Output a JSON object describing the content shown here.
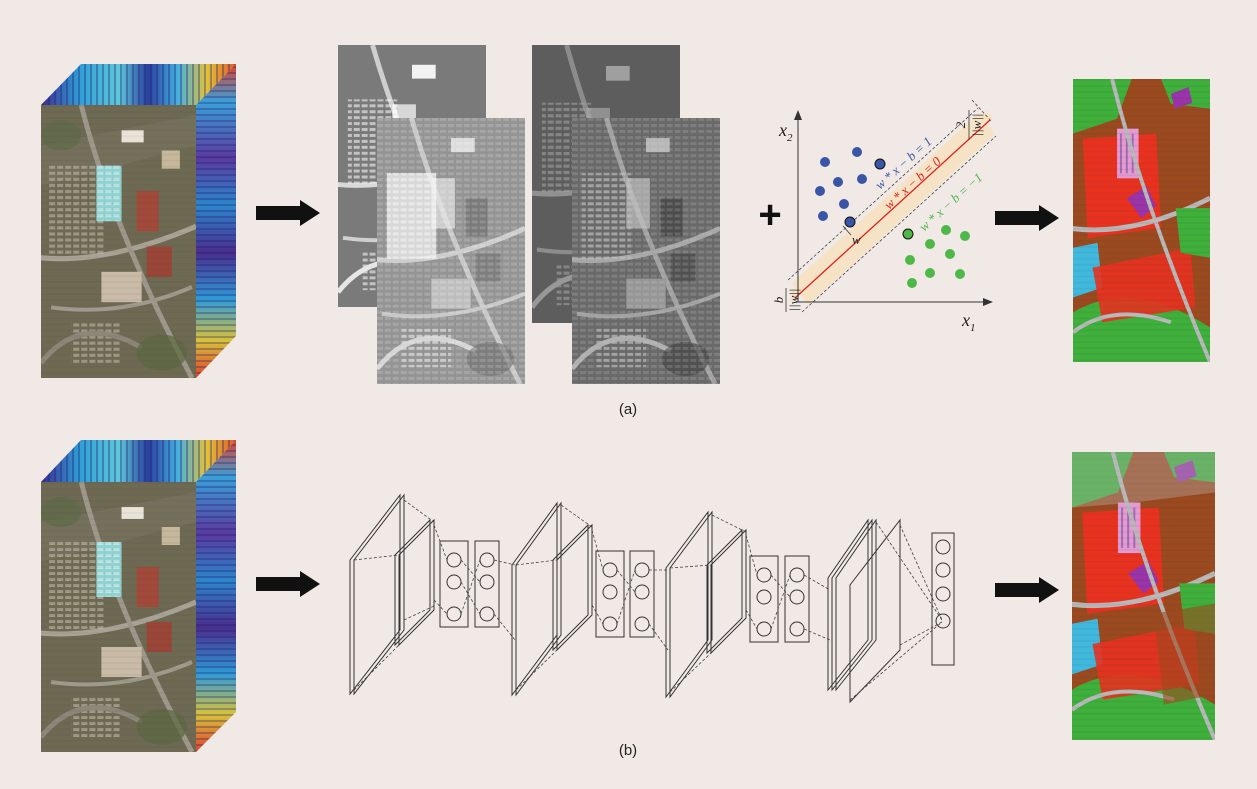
{
  "captions": {
    "a": "(a)",
    "b": "(b)"
  },
  "svm": {
    "axis_x": "x",
    "axis_x_sub": "1",
    "axis_y": "x",
    "axis_y_sub": "2",
    "eq_upper": "w * x − b = 1",
    "eq_center": "w * x − b = 0",
    "eq_lower": "w * x − b = −1",
    "w_label": "w",
    "margin_num": "2",
    "margin_den": "||w||",
    "offset_num": "b",
    "offset_den": "||w||",
    "plus": "+"
  },
  "colors": {
    "background": "#f0e9e6",
    "class_blue": "#3a55a6",
    "class_green": "#4db848",
    "hyperplane": "#e0201b",
    "margin_band": "#f6e3c6",
    "map_brown": "#9b4a1e",
    "map_red": "#e8321e",
    "map_green": "#3fb03a",
    "map_gray": "#b9b9b9"
  }
}
